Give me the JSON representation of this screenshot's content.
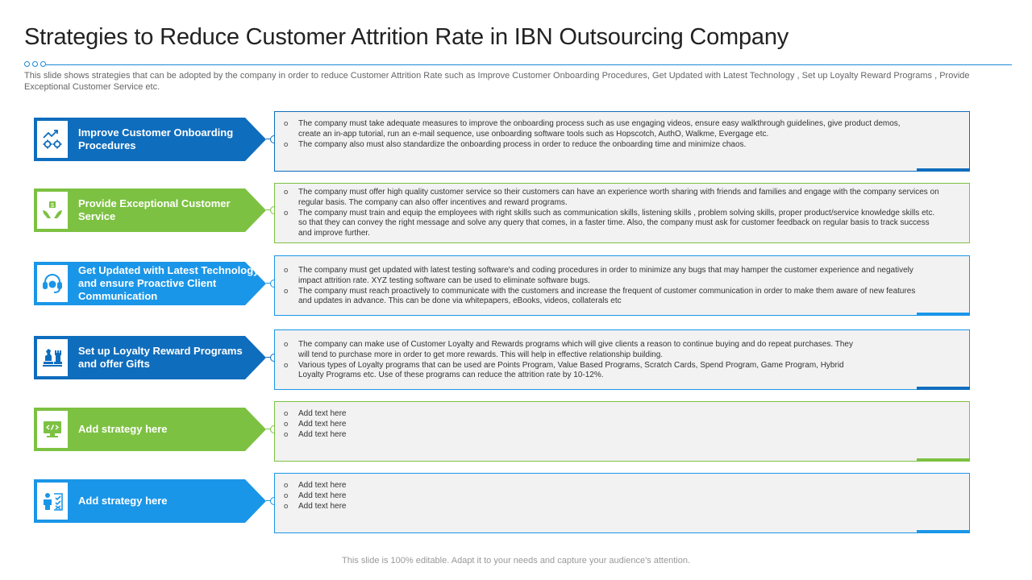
{
  "title": "Strategies to Reduce Customer Attrition Rate in IBN Outsourcing Company",
  "subtitle": "This slide shows strategies that can be adopted by the company in order to reduce Customer Attrition Rate such as Improve Customer Onboarding Procedures, Get Updated with Latest Technology , Set up Loyalty Reward Programs , Provide Exceptional Customer Service etc.",
  "colors": {
    "accent_blue": "#1e88d8",
    "dark_blue": "#0f6dbd",
    "light_blue": "#1a96e8",
    "green": "#7dc142"
  },
  "strategies": [
    {
      "label": "Improve Customer Onboarding Procedures",
      "icon": "settings-growth-icon",
      "color": "dark_blue",
      "points": [
        "The company must take adequate measures to improve the onboarding process such as use engaging videos, ensure easy walkthrough guidelines, give product demos, create an in-app tutorial, run an e-mail sequence, use onboarding software tools such as Hopscotch, AuthO, Walkme, Evergage etc.",
        "The company also must also standardize the onboarding process in order to reduce the onboarding time and minimize chaos."
      ]
    },
    {
      "label": "Provide Exceptional Customer Service",
      "icon": "hands-care-icon",
      "color": "green",
      "points": [
        "The company must offer high quality customer service so their customers can have an experience worth sharing with friends and families and engage with the company services on regular basis. The company can also offer incentives and reward programs.",
        "The company must train and equip the employees with right skills such as communication skills, listening skills , problem solving skills, proper product/service knowledge skills etc. so that they can convey the right message and solve any query that comes, in a faster time. Also, the company must ask for customer feedback on regular basis to track success and improve further."
      ]
    },
    {
      "label": "Get Updated with Latest Technology and ensure Proactive Client Communication",
      "icon": "headset-support-icon",
      "color": "light_blue",
      "points": [
        "The company must get updated with latest testing software's and coding procedures in order to minimize any bugs that may hamper the customer experience and negatively impact attrition rate. XYZ testing software can be used to eliminate software bugs.",
        "The company must reach proactively to communicate with the customers and increase the frequent of customer communication in order to make them aware of new features and updates in advance. This can be done via whitepapers, eBooks, videos, collaterals etc"
      ]
    },
    {
      "label": "Set up Loyalty Reward Programs and offer Gifts",
      "icon": "chess-strategy-icon",
      "color": "dark_blue",
      "points": [
        "The company can make use of Customer Loyalty and Rewards programs which will give clients a reason to continue buying and do repeat purchases. They will tend to purchase more in order to get more rewards. This will help in effective relationship building.",
        "Various types of Loyalty programs that can be used are Points Program, Value Based Programs, Scratch Cards, Spend Program, Game Program, Hybrid Loyalty Programs etc. Use of these programs can reduce the attrition rate by 10-12%."
      ]
    },
    {
      "label": "Add strategy here",
      "icon": "code-monitor-icon",
      "color": "green",
      "points": [
        "Add text here",
        "Add text here",
        "Add text here"
      ]
    },
    {
      "label": "Add strategy here",
      "icon": "person-checklist-icon",
      "color": "light_blue",
      "points": [
        "Add text here",
        "Add text here",
        "Add text here"
      ]
    }
  ],
  "footer": "This slide is 100% editable. Adapt it to your needs and capture your audience's attention."
}
